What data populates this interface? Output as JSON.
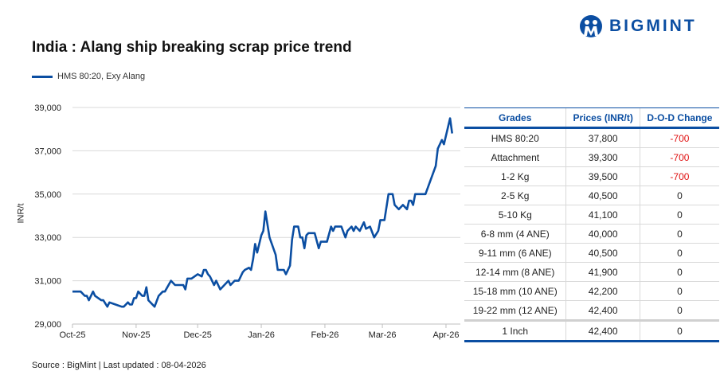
{
  "title": "India : Alang ship breaking scrap price trend",
  "brand": "BIGMINT",
  "source": "Source : BigMint | Last updated : 08-04-2026",
  "colors": {
    "line": "#0b4ea2",
    "negative": "#e01010",
    "header": "#0b4ea2"
  },
  "chart_data": {
    "type": "line",
    "title": "India : Alang ship breaking scrap price trend",
    "ylabel": "INR/t",
    "xlabel": "",
    "ylim": [
      29000,
      39000
    ],
    "yticks": [
      "29,000",
      "31,000",
      "33,000",
      "35,000",
      "37,000",
      "39,000"
    ],
    "xlim": [
      "2025-10-01",
      "2026-04-08"
    ],
    "xticks": [
      {
        "date": "2025-10-01",
        "label": "Oct-25"
      },
      {
        "date": "2025-11-01",
        "label": "Nov-25"
      },
      {
        "date": "2025-12-01",
        "label": "Dec-25"
      },
      {
        "date": "2026-01-01",
        "label": "Jan-26"
      },
      {
        "date": "2026-02-01",
        "label": "Feb-26"
      },
      {
        "date": "2026-03-01",
        "label": "Mar-26"
      },
      {
        "date": "2026-04-01",
        "label": "Apr-26"
      }
    ],
    "grid": "horizontal",
    "legend": "top-left",
    "series": [
      {
        "name": "HMS 80:20, Exy Alang",
        "points": [
          [
            "2025-10-01",
            30500
          ],
          [
            "2025-10-05",
            30500
          ],
          [
            "2025-10-07",
            30300
          ],
          [
            "2025-10-08",
            30300
          ],
          [
            "2025-10-09",
            30100
          ],
          [
            "2025-10-11",
            30500
          ],
          [
            "2025-10-12",
            30300
          ],
          [
            "2025-10-15",
            30100
          ],
          [
            "2025-10-16",
            30100
          ],
          [
            "2025-10-18",
            29800
          ],
          [
            "2025-10-19",
            30000
          ],
          [
            "2025-10-22",
            29900
          ],
          [
            "2025-10-25",
            29800
          ],
          [
            "2025-10-26",
            29800
          ],
          [
            "2025-10-28",
            30000
          ],
          [
            "2025-10-29",
            29900
          ],
          [
            "2025-10-30",
            29900
          ],
          [
            "2025-10-31",
            30200
          ],
          [
            "2025-11-01",
            30200
          ],
          [
            "2025-11-02",
            30500
          ],
          [
            "2025-11-04",
            30300
          ],
          [
            "2025-11-05",
            30300
          ],
          [
            "2025-11-06",
            30700
          ],
          [
            "2025-11-07",
            30100
          ],
          [
            "2025-11-10",
            29800
          ],
          [
            "2025-11-12",
            30300
          ],
          [
            "2025-11-14",
            30500
          ],
          [
            "2025-11-15",
            30500
          ],
          [
            "2025-11-18",
            31000
          ],
          [
            "2025-11-20",
            30800
          ],
          [
            "2025-11-24",
            30800
          ],
          [
            "2025-11-25",
            30600
          ],
          [
            "2025-11-26",
            31100
          ],
          [
            "2025-11-28",
            31100
          ],
          [
            "2025-12-01",
            31300
          ],
          [
            "2025-12-03",
            31200
          ],
          [
            "2025-12-04",
            31500
          ],
          [
            "2025-12-05",
            31500
          ],
          [
            "2025-12-06",
            31300
          ],
          [
            "2025-12-07",
            31200
          ],
          [
            "2025-12-09",
            30800
          ],
          [
            "2025-12-10",
            31000
          ],
          [
            "2025-12-12",
            30600
          ],
          [
            "2025-12-16",
            31000
          ],
          [
            "2025-12-17",
            30800
          ],
          [
            "2025-12-19",
            31000
          ],
          [
            "2025-12-21",
            31000
          ],
          [
            "2025-12-23",
            31400
          ],
          [
            "2025-12-24",
            31500
          ],
          [
            "2025-12-26",
            31600
          ],
          [
            "2025-12-27",
            31500
          ],
          [
            "2025-12-28",
            32000
          ],
          [
            "2025-12-29",
            32700
          ],
          [
            "2025-12-30",
            32300
          ],
          [
            "2026-01-01",
            33100
          ],
          [
            "2026-01-02",
            33300
          ],
          [
            "2026-01-03",
            34200
          ],
          [
            "2026-01-05",
            33000
          ],
          [
            "2026-01-08",
            32200
          ],
          [
            "2026-01-09",
            31500
          ],
          [
            "2026-01-12",
            31500
          ],
          [
            "2026-01-13",
            31300
          ],
          [
            "2026-01-15",
            31700
          ],
          [
            "2026-01-16",
            32900
          ],
          [
            "2026-01-17",
            33500
          ],
          [
            "2026-01-19",
            33500
          ],
          [
            "2026-01-20",
            33000
          ],
          [
            "2026-01-21",
            33000
          ],
          [
            "2026-01-22",
            32500
          ],
          [
            "2026-01-23",
            33100
          ],
          [
            "2026-01-24",
            33200
          ],
          [
            "2026-01-27",
            33200
          ],
          [
            "2026-01-29",
            32500
          ],
          [
            "2026-01-30",
            32800
          ],
          [
            "2026-02-02",
            32800
          ],
          [
            "2026-02-04",
            33500
          ],
          [
            "2026-02-05",
            33300
          ],
          [
            "2026-02-06",
            33500
          ],
          [
            "2026-02-09",
            33500
          ],
          [
            "2026-02-11",
            33000
          ],
          [
            "2026-02-12",
            33300
          ],
          [
            "2026-02-14",
            33500
          ],
          [
            "2026-02-15",
            33300
          ],
          [
            "2026-02-16",
            33500
          ],
          [
            "2026-02-18",
            33300
          ],
          [
            "2026-02-20",
            33700
          ],
          [
            "2026-02-21",
            33400
          ],
          [
            "2026-02-23",
            33500
          ],
          [
            "2026-02-25",
            33000
          ],
          [
            "2026-02-27",
            33300
          ],
          [
            "2026-02-28",
            33800
          ],
          [
            "2026-03-02",
            33800
          ],
          [
            "2026-03-04",
            35000
          ],
          [
            "2026-03-06",
            35000
          ],
          [
            "2026-03-07",
            34500
          ],
          [
            "2026-03-09",
            34300
          ],
          [
            "2026-03-11",
            34500
          ],
          [
            "2026-03-13",
            34300
          ],
          [
            "2026-03-14",
            34700
          ],
          [
            "2026-03-15",
            34700
          ],
          [
            "2026-03-16",
            34500
          ],
          [
            "2026-03-17",
            35000
          ],
          [
            "2026-03-22",
            35000
          ],
          [
            "2026-03-27",
            36300
          ],
          [
            "2026-03-28",
            37100
          ],
          [
            "2026-03-30",
            37500
          ],
          [
            "2026-03-31",
            37300
          ],
          [
            "2026-04-03",
            38500
          ],
          [
            "2026-04-04",
            37800
          ]
        ]
      }
    ]
  },
  "table": {
    "headers": [
      "Grades",
      "Prices (INR/t)",
      "D-O-D Change"
    ],
    "rows": [
      [
        "HMS 80:20",
        "37,800",
        "-700"
      ],
      [
        "Attachment",
        "39,300",
        "-700"
      ],
      [
        "1-2 Kg",
        "39,500",
        "-700"
      ],
      [
        "2-5 Kg",
        "40,500",
        "0"
      ],
      [
        "5-10 Kg",
        "41,100",
        "0"
      ],
      [
        "6-8 mm (4 ANE)",
        "40,000",
        "0"
      ],
      [
        "9-11 mm (6 ANE)",
        "40,500",
        "0"
      ],
      [
        "12-14 mm (8 ANE)",
        "41,900",
        "0"
      ],
      [
        "15-18 mm (10 ANE)",
        "42,200",
        "0"
      ],
      [
        "19-22 mm (12 ANE)",
        "42,400",
        "0"
      ],
      [
        "1 Inch",
        "42,400",
        "0"
      ]
    ]
  }
}
